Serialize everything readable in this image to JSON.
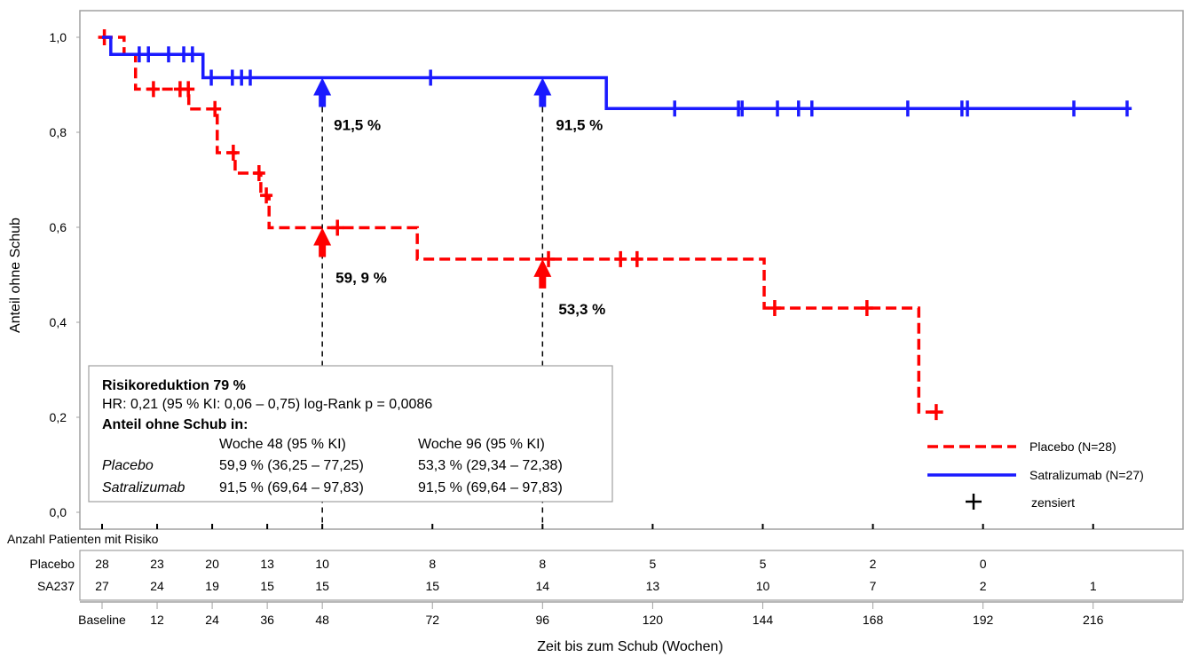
{
  "chart_data": {
    "type": "line",
    "subtype": "kaplan-meier",
    "xlabel": "Zeit bis zum Schub (Wochen)",
    "ylabel": "Anteil ohne Schub",
    "xlim": [
      -4.8,
      235
    ],
    "ylim": [
      0,
      1.0
    ],
    "x_ticks": [
      0,
      12,
      24,
      36,
      48,
      72,
      96,
      120,
      144,
      168,
      192,
      216
    ],
    "x_tick_labels": [
      "Baseline",
      "12",
      "24",
      "36",
      "48",
      "72",
      "96",
      "120",
      "144",
      "168",
      "192",
      "216"
    ],
    "y_ticks": [
      0,
      0.2,
      0.4,
      0.6,
      0.8,
      1.0
    ],
    "y_tick_labels": [
      "0,0",
      "0,2",
      "0,4",
      "0,6",
      "0,8",
      "1,0"
    ],
    "grid": false,
    "legend_position": "bottom-right",
    "series": [
      {
        "name": "Placebo (N=28)",
        "color": "#ff0000",
        "style": "dashed",
        "steps": [
          [
            0,
            1.0
          ],
          [
            4.8,
            0.964
          ],
          [
            7.3,
            0.891
          ],
          [
            18.9,
            0.849
          ],
          [
            25.1,
            0.757
          ],
          [
            29.0,
            0.714
          ],
          [
            34.6,
            0.667
          ],
          [
            36.4,
            0.599
          ],
          [
            68.7,
            0.533
          ],
          [
            144.3,
            0.43
          ],
          [
            178.0,
            0.211
          ]
        ],
        "end": 183.3,
        "censored": [
          [
            0.5,
            1.0
          ],
          [
            11.2,
            0.891
          ],
          [
            17.0,
            0.891
          ],
          [
            18.8,
            0.891
          ],
          [
            24.6,
            0.849
          ],
          [
            28.6,
            0.757
          ],
          [
            34.2,
            0.714
          ],
          [
            35.8,
            0.667
          ],
          [
            51.3,
            0.599
          ],
          [
            97.3,
            0.533
          ],
          [
            113.0,
            0.533
          ],
          [
            116.6,
            0.533
          ],
          [
            146.6,
            0.43
          ],
          [
            166.7,
            0.43
          ],
          [
            181.8,
            0.211
          ]
        ]
      },
      {
        "name": "Satralizumab (N=27)",
        "color": "#1a1aff",
        "style": "solid",
        "steps": [
          [
            0,
            1.0
          ],
          [
            1.9,
            0.964
          ],
          [
            22.0,
            0.915
          ],
          [
            109.9,
            0.85
          ]
        ],
        "end": 224.4,
        "censored": [
          [
            8.1,
            0.964
          ],
          [
            10.1,
            0.964
          ],
          [
            14.5,
            0.964
          ],
          [
            17.8,
            0.964
          ],
          [
            19.7,
            0.964
          ],
          [
            23.8,
            0.915
          ],
          [
            28.4,
            0.915
          ],
          [
            30.4,
            0.915
          ],
          [
            32.3,
            0.915
          ],
          [
            71.6,
            0.915
          ],
          [
            124.8,
            0.85
          ],
          [
            138.7,
            0.85
          ],
          [
            139.5,
            0.85
          ],
          [
            147.2,
            0.85
          ],
          [
            151.8,
            0.85
          ],
          [
            154.7,
            0.85
          ],
          [
            175.6,
            0.85
          ],
          [
            187.4,
            0.85
          ],
          [
            188.6,
            0.85
          ],
          [
            211.8,
            0.85
          ],
          [
            223.4,
            0.85
          ]
        ]
      }
    ],
    "censor_legend": "zensiert",
    "annotations": [
      {
        "week": 48,
        "series": "Satralizumab",
        "value": 0.915,
        "label": "91,5 %"
      },
      {
        "week": 48,
        "series": "Placebo",
        "value": 0.599,
        "label": "59, 9 %"
      },
      {
        "week": 96,
        "series": "Satralizumab",
        "value": 0.915,
        "label": "91,5 %"
      },
      {
        "week": 96,
        "series": "Placebo",
        "value": 0.533,
        "label": "53,3 %"
      }
    ],
    "info_box": {
      "title": "Risikoreduktion 79 %",
      "hr_line": "HR: 0,21 (95 % KI: 0,06 – 0,75) log-Rank p = 0,0086",
      "subtitle": "Anteil ohne Schub in:",
      "col1": "Woche 48 (95 % KI)",
      "col2": "Woche 96 (95 % KI)",
      "rows": [
        {
          "name": "Placebo",
          "w48": "59,9 % (36,25 – 77,25)",
          "w96": "53,3 % (29,34 – 72,38)"
        },
        {
          "name": "Satralizumab",
          "w48": "91,5 % (69,64 – 97,83)",
          "w96": "91,5 % (69,64 – 97,83)"
        }
      ]
    },
    "risk_table": {
      "title": "Anzahl Patienten mit Risiko",
      "weeks": [
        0,
        12,
        24,
        36,
        48,
        72,
        96,
        120,
        144,
        168,
        192,
        216
      ],
      "rows": [
        {
          "label": "Placebo",
          "values": [
            "28",
            "23",
            "20",
            "13",
            "10",
            "8",
            "8",
            "5",
            "5",
            "2",
            "0",
            ""
          ]
        },
        {
          "label": "SA237",
          "values": [
            "27",
            "24",
            "19",
            "15",
            "15",
            "15",
            "14",
            "13",
            "10",
            "7",
            "2",
            "1"
          ]
        }
      ]
    }
  }
}
